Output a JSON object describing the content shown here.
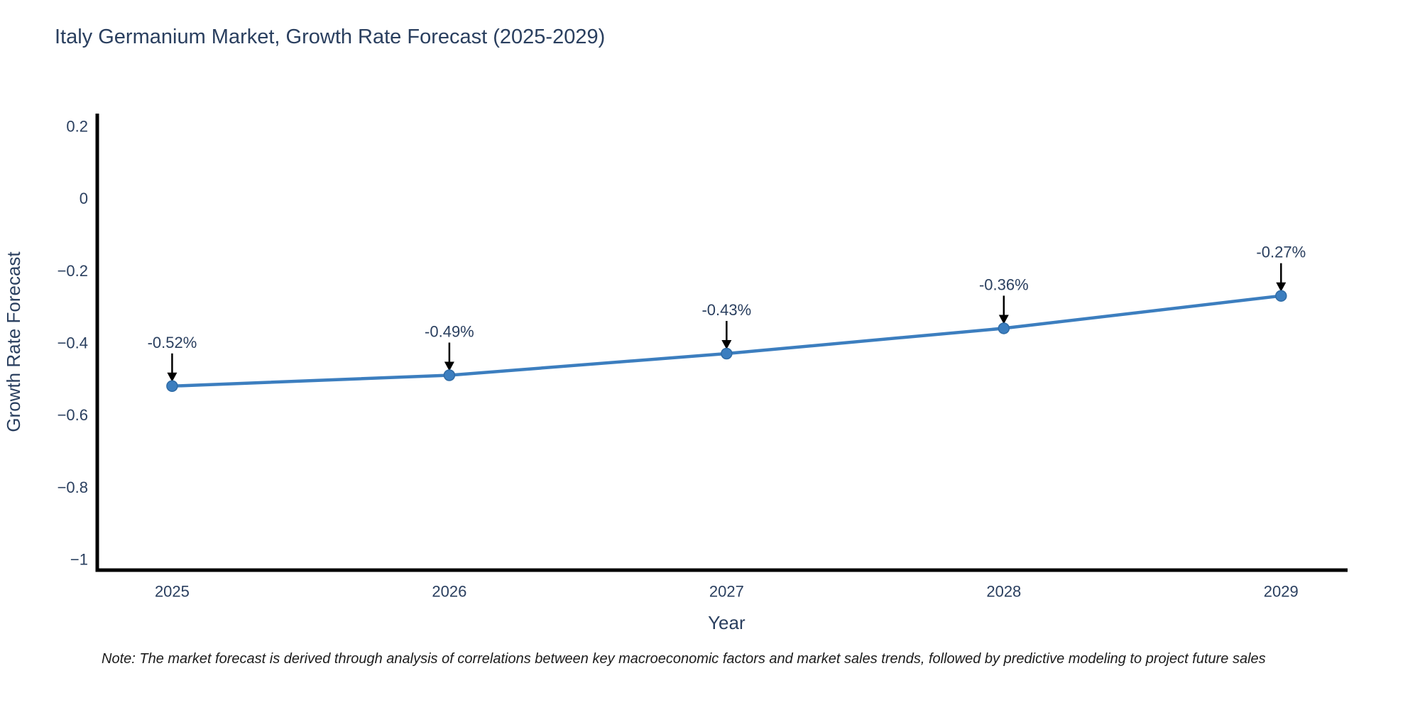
{
  "note": "Note: The market forecast is derived through analysis of correlations between key macroeconomic factors and market sales trends, followed by predictive modeling to project future sales",
  "colors": {
    "line": "#3c7ebf",
    "marker_fill": "#3c7ebf",
    "marker_stroke": "#2f6ba5",
    "axis_line": "#000000",
    "tick_text": "#2a3f5f",
    "axis_title_text": "#2a3f5f",
    "annotation_text": "#2a3f5f",
    "arrow": "#000000",
    "title_text": "#2a3f5f",
    "background": "#ffffff"
  },
  "chart_data": {
    "type": "line",
    "title": "Italy Germanium Market, Growth Rate Forecast (2025-2029)",
    "xlabel": "Year",
    "ylabel": "Growth Rate Forecast",
    "x": [
      2025,
      2026,
      2027,
      2028,
      2029
    ],
    "series": [
      {
        "name": "Growth Rate Forecast",
        "values": [
          -0.52,
          -0.49,
          -0.43,
          -0.36,
          -0.27
        ]
      }
    ],
    "point_labels": [
      "-0.52%",
      "-0.49%",
      "-0.43%",
      "-0.36%",
      "-0.27%"
    ],
    "xtick_labels": [
      "2025",
      "2026",
      "2027",
      "2028",
      "2029"
    ],
    "ytick_values": [
      0.2,
      0,
      -0.2,
      -0.4,
      -0.6,
      -0.8,
      -1
    ],
    "ytick_labels": [
      "0.2",
      "0",
      "−0.2",
      "−0.4",
      "−0.6",
      "−0.8",
      "−1"
    ],
    "xlim": [
      2024.73,
      2029.24
    ],
    "ylim": [
      -1.03,
      0.235
    ],
    "grid": false,
    "legend_position": "none",
    "marker_shape": "circle",
    "annotations_have_arrows": true
  }
}
